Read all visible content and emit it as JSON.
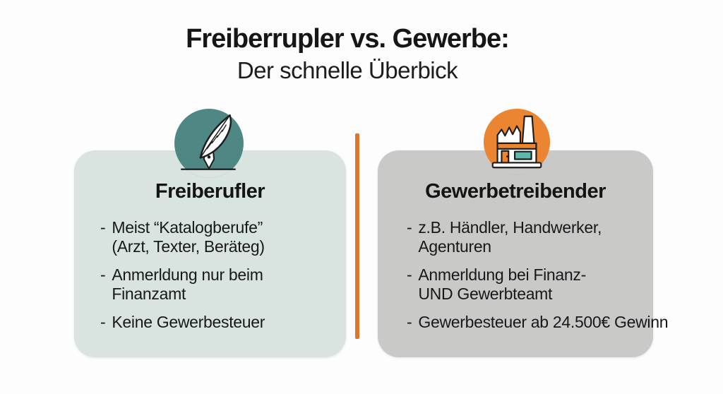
{
  "header": {
    "title": "Freiberrupler vs. Gewerbe:",
    "subtitle": "Der schnelle Überbick"
  },
  "cards": {
    "left": {
      "title": "Freiberufler",
      "icon": "quill-pen",
      "bullets": [
        {
          "lines": [
            "Meist “Katalogberufe”",
            "(Arzt, Texter, Beräteg)"
          ]
        },
        {
          "lines": [
            "Anmerldung nur beim",
            "Finanzamt"
          ]
        },
        {
          "lines": [
            "Keine Gewerbesteuer"
          ]
        }
      ]
    },
    "right": {
      "title": "Gewerbetreibender",
      "icon": "factory",
      "bullets": [
        {
          "lines": [
            "z.B. Händler, Handwerker,",
            "Agenturen"
          ]
        },
        {
          "lines": [
            "Anmerldung bei Finanz-",
            "UND Gewerbteamt"
          ]
        },
        {
          "lines": [
            "Gewerbesteuer ab 24.500€ Gewinn"
          ]
        }
      ]
    }
  },
  "colors": {
    "background": "#fdfdfd",
    "text": "#1a1a1a",
    "left_card_bg": "#d9e4e0",
    "right_card_bg": "#c9c9c8",
    "left_icon_bg": "#4e8784",
    "right_icon_bg": "#ec8531",
    "divider": "#e0752c",
    "window_teal": "#5fb8ac"
  }
}
